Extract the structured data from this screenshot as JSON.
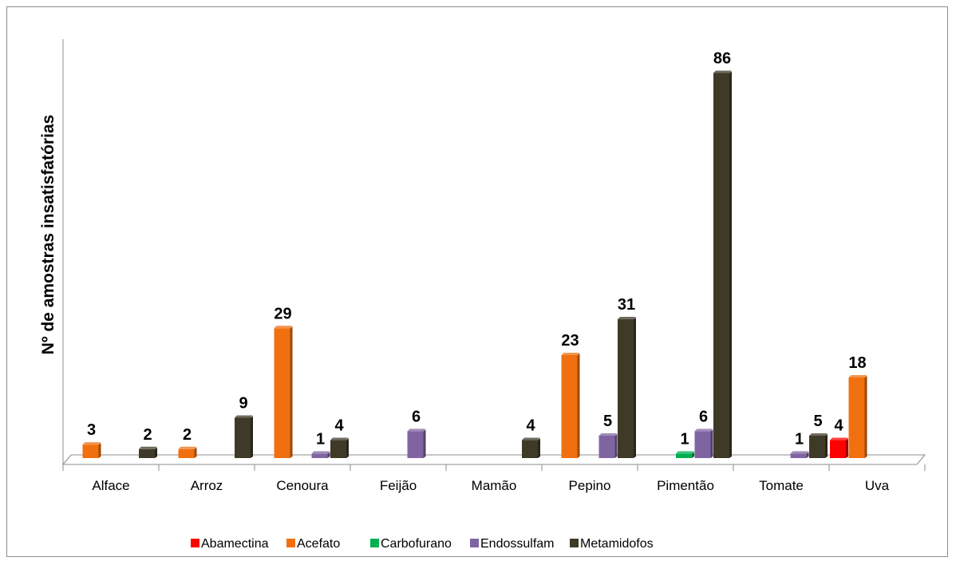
{
  "chart_data": {
    "type": "bar",
    "title": "",
    "xlabel": "",
    "ylabel": "Nº de amostras insatisfatórias",
    "categories": [
      "Alface",
      "Arroz",
      "Cenoura",
      "Feijão",
      "Mamão",
      "Pepino",
      "Pimentão",
      "Tomate",
      "Uva"
    ],
    "series": [
      {
        "name": "Abamectina",
        "color": "#ff0000",
        "values": [
          null,
          null,
          null,
          null,
          null,
          null,
          null,
          null,
          4
        ]
      },
      {
        "name": "Acefato",
        "color": "#f07010",
        "values": [
          3,
          2,
          29,
          null,
          null,
          23,
          null,
          null,
          18
        ]
      },
      {
        "name": "Carbofurano",
        "color": "#00b050",
        "values": [
          null,
          null,
          null,
          null,
          null,
          null,
          1,
          null,
          null
        ]
      },
      {
        "name": "Endossulfam",
        "color": "#8064a2",
        "values": [
          null,
          null,
          1,
          6,
          null,
          5,
          6,
          1,
          null
        ]
      },
      {
        "name": "Metamidofos",
        "color": "#3f3a28",
        "values": [
          2,
          9,
          4,
          null,
          4,
          31,
          86,
          5,
          null
        ]
      }
    ],
    "ylim": [
      0,
      90
    ],
    "grid": false,
    "legend": "bottom",
    "style": "3d-column"
  }
}
